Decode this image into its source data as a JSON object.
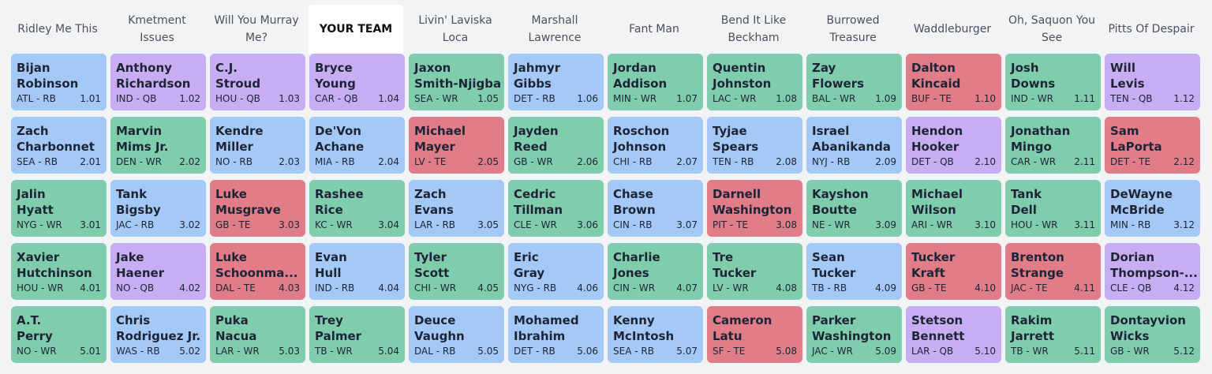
{
  "board": {
    "headers": [
      "Ridley Me This",
      "Kmetment Issues",
      "Will You Murray Me?",
      "YOUR TEAM",
      "Livin' Laviska Loca",
      "Marshall Lawrence",
      "Fant Man",
      "Bend It Like Beckham",
      "Burrowed Treasure",
      "Waddleburger",
      "Oh, Saquon You See",
      "Pitts Of Despair"
    ],
    "highlight_column": 3,
    "rows": [
      [
        [
          "Bijan",
          "Robinson",
          "ATL - RB",
          "1.01",
          "#a5c9f6"
        ],
        [
          "Anthony",
          "Richardson",
          "IND - QB",
          "1.02",
          "#c8adf2"
        ],
        [
          "C.J.",
          "Stroud",
          "HOU - QB",
          "1.03",
          "#c8adf2"
        ],
        [
          "Bryce",
          "Young",
          "CAR - QB",
          "1.04",
          "#c8adf2"
        ],
        [
          "Jaxon",
          "Smith-Njigba",
          "SEA - WR",
          "1.05",
          "#80cdae"
        ],
        [
          "Jahmyr",
          "Gibbs",
          "DET - RB",
          "1.06",
          "#a5c9f6"
        ],
        [
          "Jordan",
          "Addison",
          "MIN - WR",
          "1.07",
          "#80cdae"
        ],
        [
          "Quentin",
          "Johnston",
          "LAC - WR",
          "1.08",
          "#80cdae"
        ],
        [
          "Zay",
          "Flowers",
          "BAL - WR",
          "1.09",
          "#80cdae"
        ],
        [
          "Dalton",
          "Kincaid",
          "BUF - TE",
          "1.10",
          "#e07d88"
        ],
        [
          "Josh",
          "Downs",
          "IND - WR",
          "1.11",
          "#80cdae"
        ],
        [
          "Will",
          "Levis",
          "TEN - QB",
          "1.12",
          "#c8adf2"
        ]
      ],
      [
        [
          "Zach",
          "Charbonnet",
          "SEA - RB",
          "2.01",
          "#a5c9f6"
        ],
        [
          "Marvin",
          "Mims Jr.",
          "DEN - WR",
          "2.02",
          "#80cdae"
        ],
        [
          "Kendre",
          "Miller",
          "NO - RB",
          "2.03",
          "#a5c9f6"
        ],
        [
          "De'Von",
          "Achane",
          "MIA - RB",
          "2.04",
          "#a5c9f6"
        ],
        [
          "Michael",
          "Mayer",
          "LV - TE",
          "2.05",
          "#e07d88"
        ],
        [
          "Jayden",
          "Reed",
          "GB - WR",
          "2.06",
          "#80cdae"
        ],
        [
          "Roschon",
          "Johnson",
          "CHI - RB",
          "2.07",
          "#a5c9f6"
        ],
        [
          "Tyjae",
          "Spears",
          "TEN - RB",
          "2.08",
          "#a5c9f6"
        ],
        [
          "Israel",
          "Abanikanda",
          "NYJ - RB",
          "2.09",
          "#a5c9f6"
        ],
        [
          "Hendon",
          "Hooker",
          "DET - QB",
          "2.10",
          "#c8adf2"
        ],
        [
          "Jonathan",
          "Mingo",
          "CAR - WR",
          "2.11",
          "#80cdae"
        ],
        [
          "Sam",
          "LaPorta",
          "DET - TE",
          "2.12",
          "#e07d88"
        ]
      ],
      [
        [
          "Jalin",
          "Hyatt",
          "NYG - WR",
          "3.01",
          "#80cdae"
        ],
        [
          "Tank",
          "Bigsby",
          "JAC - RB",
          "3.02",
          "#a5c9f6"
        ],
        [
          "Luke",
          "Musgrave",
          "GB - TE",
          "3.03",
          "#e07d88"
        ],
        [
          "Rashee",
          "Rice",
          "KC - WR",
          "3.04",
          "#80cdae"
        ],
        [
          "Zach",
          "Evans",
          "LAR - RB",
          "3.05",
          "#a5c9f6"
        ],
        [
          "Cedric",
          "Tillman",
          "CLE - WR",
          "3.06",
          "#80cdae"
        ],
        [
          "Chase",
          "Brown",
          "CIN - RB",
          "3.07",
          "#a5c9f6"
        ],
        [
          "Darnell",
          "Washington",
          "PIT - TE",
          "3.08",
          "#e07d88"
        ],
        [
          "Kayshon",
          "Boutte",
          "NE - WR",
          "3.09",
          "#80cdae"
        ],
        [
          "Michael",
          "Wilson",
          "ARI - WR",
          "3.10",
          "#80cdae"
        ],
        [
          "Tank",
          "Dell",
          "HOU - WR",
          "3.11",
          "#80cdae"
        ],
        [
          "DeWayne",
          "McBride",
          "MIN - RB",
          "3.12",
          "#a5c9f6"
        ]
      ],
      [
        [
          "Xavier",
          "Hutchinson",
          "HOU - WR",
          "4.01",
          "#80cdae"
        ],
        [
          "Jake",
          "Haener",
          "NO - QB",
          "4.02",
          "#c8adf2"
        ],
        [
          "Luke",
          "Schoonma...",
          "DAL - TE",
          "4.03",
          "#e07d88"
        ],
        [
          "Evan",
          "Hull",
          "IND - RB",
          "4.04",
          "#a5c9f6"
        ],
        [
          "Tyler",
          "Scott",
          "CHI - WR",
          "4.05",
          "#80cdae"
        ],
        [
          "Eric",
          "Gray",
          "NYG - RB",
          "4.06",
          "#a5c9f6"
        ],
        [
          "Charlie",
          "Jones",
          "CIN - WR",
          "4.07",
          "#80cdae"
        ],
        [
          "Tre",
          "Tucker",
          "LV - WR",
          "4.08",
          "#80cdae"
        ],
        [
          "Sean",
          "Tucker",
          "TB - RB",
          "4.09",
          "#a5c9f6"
        ],
        [
          "Tucker",
          "Kraft",
          "GB - TE",
          "4.10",
          "#e07d88"
        ],
        [
          "Brenton",
          "Strange",
          "JAC - TE",
          "4.11",
          "#e07d88"
        ],
        [
          "Dorian",
          "Thompson-...",
          "CLE - QB",
          "4.12",
          "#c8adf2"
        ]
      ],
      [
        [
          "A.T.",
          "Perry",
          "NO - WR",
          "5.01",
          "#80cdae"
        ],
        [
          "Chris",
          "Rodriguez Jr.",
          "WAS - RB",
          "5.02",
          "#a5c9f6"
        ],
        [
          "Puka",
          "Nacua",
          "LAR - WR",
          "5.03",
          "#80cdae"
        ],
        [
          "Trey",
          "Palmer",
          "TB - WR",
          "5.04",
          "#80cdae"
        ],
        [
          "Deuce",
          "Vaughn",
          "DAL - RB",
          "5.05",
          "#a5c9f6"
        ],
        [
          "Mohamed",
          "Ibrahim",
          "DET - RB",
          "5.06",
          "#a5c9f6"
        ],
        [
          "Kenny",
          "McIntosh",
          "SEA - RB",
          "5.07",
          "#a5c9f6"
        ],
        [
          "Cameron",
          "Latu",
          "SF - TE",
          "5.08",
          "#e07d88"
        ],
        [
          "Parker",
          "Washington",
          "JAC - WR",
          "5.09",
          "#80cdae"
        ],
        [
          "Stetson",
          "Bennett",
          "LAR - QB",
          "5.10",
          "#c8adf2"
        ],
        [
          "Rakim",
          "Jarrett",
          "TB - WR",
          "5.11",
          "#80cdae"
        ],
        [
          "Dontayvion",
          "Wicks",
          "GB - WR",
          "5.12",
          "#80cdae"
        ]
      ]
    ]
  }
}
